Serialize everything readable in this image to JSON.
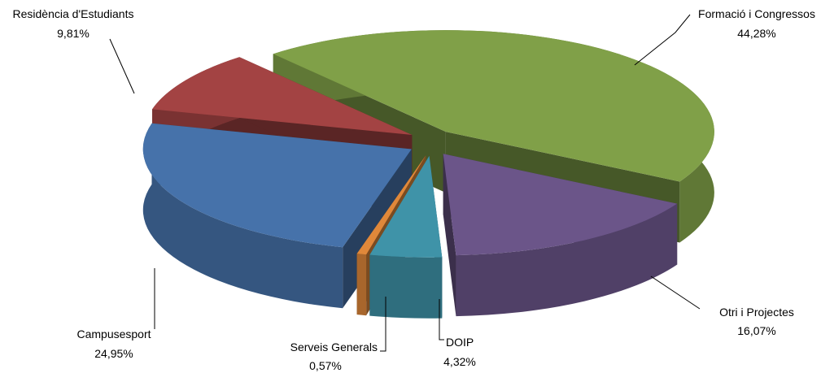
{
  "chart_data": {
    "type": "pie",
    "categories": [
      "Formació i Congressos",
      "Otri i Projectes",
      "DOIP",
      "Serveis Generals",
      "Campusesport",
      "Residència d'Estudiants"
    ],
    "values": [
      44.28,
      16.07,
      4.32,
      0.57,
      24.95,
      9.81
    ],
    "value_labels": [
      "44,28%",
      "16,07%",
      "4,32%",
      "0,57%",
      "24,95%",
      "9,81%"
    ],
    "colors": [
      "#80a048",
      "#6b5589",
      "#3f93a8",
      "#e0883a",
      "#4672aa",
      "#a34343"
    ]
  }
}
